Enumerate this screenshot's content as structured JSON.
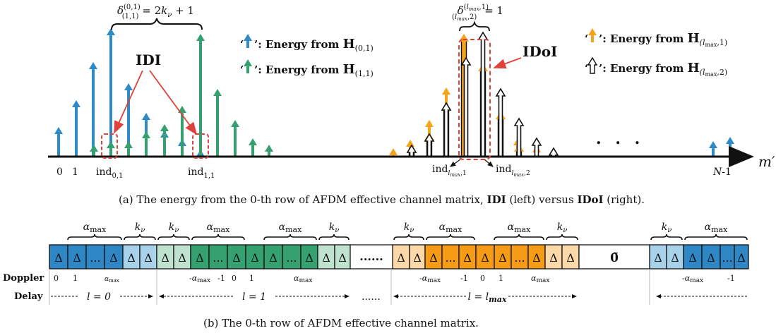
{
  "top_panel": {
    "annotation_left": "δ(0,1)(1,1) = 2kν + 1",
    "annotation_right": "δ(lmax,1)(lmax,2) = 1",
    "idi_label": "IDI",
    "idoi_label": "IDoI",
    "legend": {
      "blue": "': Energy from H(0,1)",
      "green": "': Energy from H(1,1)",
      "orange": "': Energy from H(lmax,1)",
      "white": "': Energy from H(lmax,2)"
    },
    "axis_label": "m′",
    "ellipsis": ". . .",
    "ticks": [
      "0",
      "1",
      "ind0,1",
      "ind1,1",
      "indlmax,1",
      "indlmax,2",
      "N-1"
    ],
    "caption_a_pre": "(a) The energy from the 0-th row of AFDM effective channel matrix, ",
    "caption_a_idi": "IDI",
    "caption_a_mid": " (left) versus ",
    "caption_a_idoi": "IDoI",
    "caption_a_post": " (right).",
    "colors": {
      "blue": "#2e8bc8",
      "green": "#35a070",
      "orange": "#f5a31a",
      "red": "#e0413a"
    }
  },
  "bottom_panel": {
    "delta": "Δ",
    "dots": "...",
    "long_dots": "......",
    "zero_vector": "0̃",
    "brace_alpha": "αmax",
    "brace_k": "kν",
    "row_doppler": "Doppler",
    "row_delay": "Delay",
    "doppler_labels": {
      "zero": "0",
      "one": "1",
      "alpha": "αmax",
      "neg_alpha": "-αmax",
      "neg_one": "-1"
    },
    "delay_labels": {
      "l0": "l = 0",
      "l1": "l = 1",
      "lmax": "l = lmax"
    },
    "caption_b": "(b) The 0-th row of  AFDM effective channel matrix.",
    "colors": {
      "dark_blue": "#2f86c4",
      "light_blue": "#a8d2ea",
      "light_green": "#bfe3cf",
      "green": "#35a070",
      "light_orange": "#fbd8a8",
      "orange": "#f59b16"
    }
  }
}
